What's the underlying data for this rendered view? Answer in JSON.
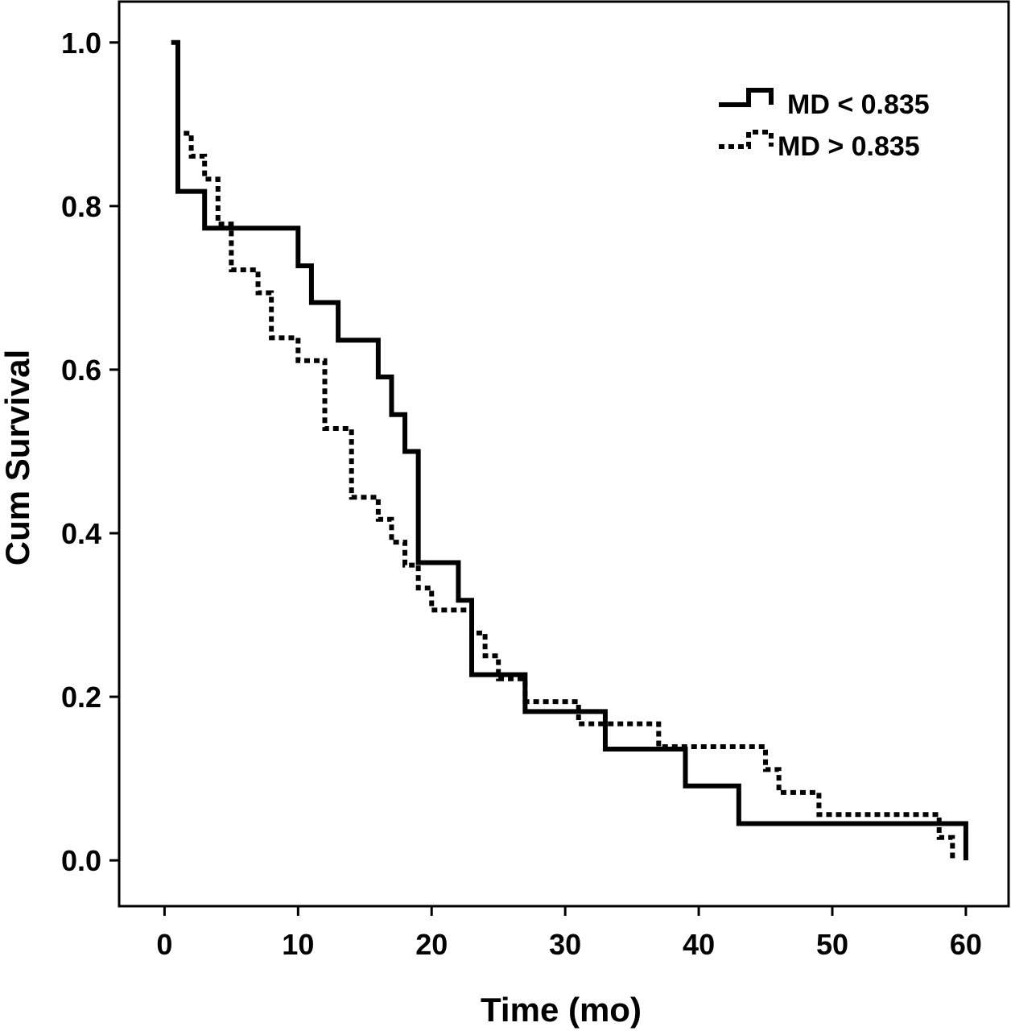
{
  "chart_data": {
    "type": "line",
    "step": true,
    "xlabel": "Time (mo)",
    "ylabel": "Cum Survival",
    "xlim": [
      -3.4,
      63.2
    ],
    "ylim": [
      -0.056,
      1.05
    ],
    "xticks": [
      0,
      10,
      20,
      30,
      40,
      50,
      60
    ],
    "yticks": [
      0.0,
      0.2,
      0.4,
      0.6,
      0.8,
      1.0
    ],
    "xtick_labels": [
      "0",
      "10",
      "20",
      "30",
      "40",
      "50",
      "60"
    ],
    "ytick_labels": [
      "0.0",
      "0.2",
      "0.4",
      "0.6",
      "0.8",
      "1.0"
    ],
    "grid": false,
    "legend_position": "top-right",
    "series": [
      {
        "name": "MD < 0.835",
        "style": "solid",
        "color": "#000000",
        "x": [
          0.5,
          1,
          3,
          10,
          11,
          13,
          16,
          17,
          18,
          19,
          22,
          23,
          27,
          33,
          39,
          43,
          60,
          60
        ],
        "y": [
          1.0,
          0.818,
          0.773,
          0.727,
          0.682,
          0.636,
          0.591,
          0.545,
          0.5,
          0.364,
          0.318,
          0.227,
          0.182,
          0.136,
          0.091,
          0.045,
          0.045,
          0.0
        ]
      },
      {
        "name": "MD > 0.835",
        "style": "dotted",
        "color": "#000000",
        "x": [
          1,
          2,
          3,
          4,
          5,
          7,
          8,
          10,
          12,
          14,
          16,
          17,
          18,
          19,
          20,
          23,
          24,
          25,
          27,
          31,
          33,
          37,
          45,
          46,
          49,
          58,
          59,
          59
        ],
        "y": [
          0.889,
          0.861,
          0.833,
          0.778,
          0.722,
          0.694,
          0.639,
          0.611,
          0.528,
          0.444,
          0.417,
          0.389,
          0.361,
          0.333,
          0.306,
          0.278,
          0.25,
          0.222,
          0.194,
          0.167,
          0.167,
          0.139,
          0.111,
          0.083,
          0.056,
          0.028,
          0.0,
          0.0
        ]
      }
    ]
  }
}
